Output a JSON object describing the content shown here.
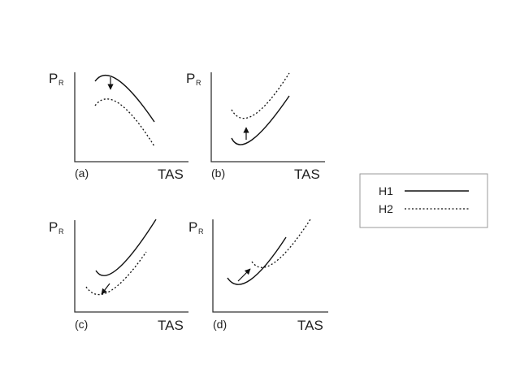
{
  "panels": {
    "a": {
      "ylabel": "P",
      "ylabel_sub": "R",
      "panel_label": "(a)",
      "xlabel": "TAS",
      "h2_shift": "lower"
    },
    "b": {
      "ylabel": "P",
      "ylabel_sub": "R",
      "panel_label": "(b)",
      "xlabel": "TAS",
      "h2_shift": "higher"
    },
    "c": {
      "ylabel": "P",
      "ylabel_sub": "R",
      "panel_label": "(c)",
      "xlabel": "TAS",
      "h2_shift": "lower"
    },
    "d": {
      "ylabel": "P",
      "ylabel_sub": "R",
      "panel_label": "(d)",
      "xlabel": "TAS",
      "h2_shift": "right"
    }
  },
  "legend": {
    "items": [
      {
        "label": "H1",
        "line_style": "solid"
      },
      {
        "label": "H2",
        "line_style": "dotted"
      }
    ]
  },
  "colors": {
    "curve": "#111111",
    "axis": "#333333",
    "legend_border": "#999999"
  }
}
